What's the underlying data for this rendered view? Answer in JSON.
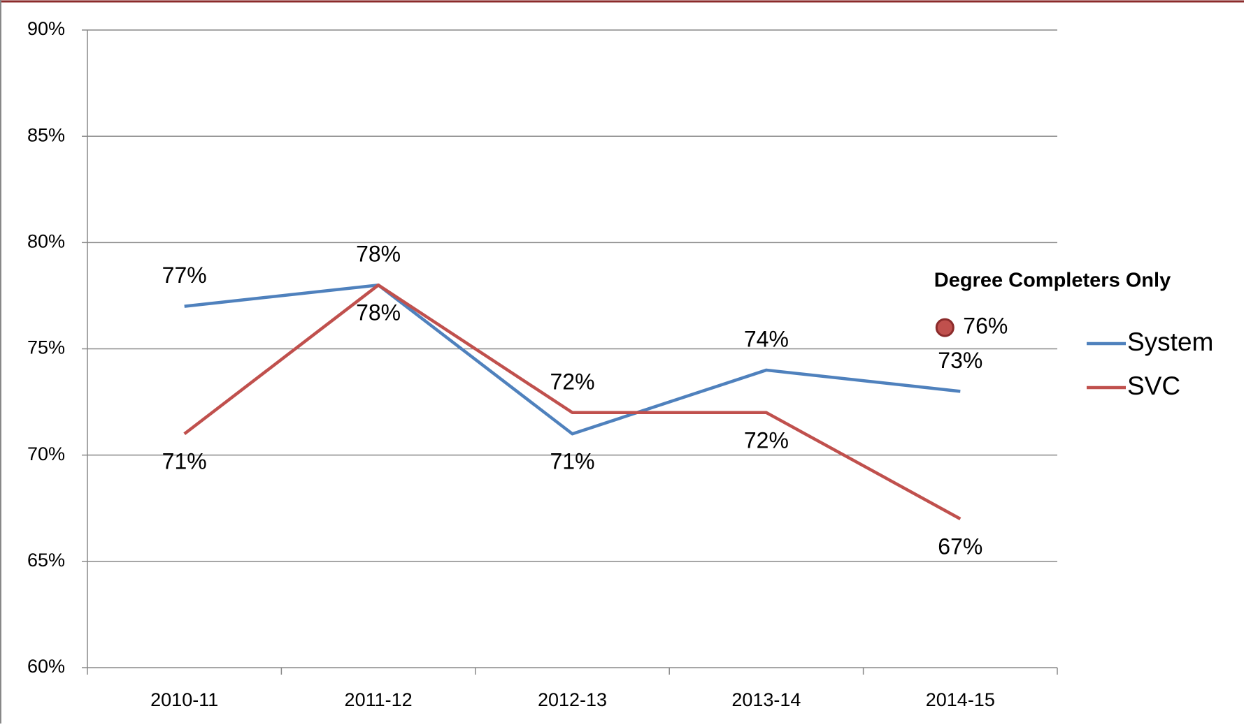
{
  "chart_data": {
    "type": "line",
    "categories": [
      "2010-11",
      "2011-12",
      "2012-13",
      "2013-14",
      "2014-15"
    ],
    "series": [
      {
        "name": "System",
        "color": "#4f81bd",
        "values": [
          77,
          78,
          71,
          74,
          73
        ],
        "value_labels": [
          "77%",
          "78%",
          "71%",
          "74%",
          "73%"
        ]
      },
      {
        "name": "SVC",
        "color": "#c0504d",
        "values": [
          71,
          78,
          72,
          72,
          67
        ],
        "value_labels": [
          "71%",
          "78%",
          "72%",
          "72%",
          "67%"
        ]
      }
    ],
    "ylim": [
      60,
      90
    ],
    "yticks": [
      {
        "value": 60,
        "label": "60%"
      },
      {
        "value": 65,
        "label": "65%"
      },
      {
        "value": 70,
        "label": "70%"
      },
      {
        "value": 75,
        "label": "75%"
      },
      {
        "value": 80,
        "label": "80%"
      },
      {
        "value": 85,
        "label": "85%"
      },
      {
        "value": 90,
        "label": "90%"
      }
    ],
    "grid": true,
    "legend": "right",
    "annotation": {
      "text": "Degree Completers Only",
      "value": 76,
      "value_label": "76%",
      "color": "#c0504d"
    }
  }
}
